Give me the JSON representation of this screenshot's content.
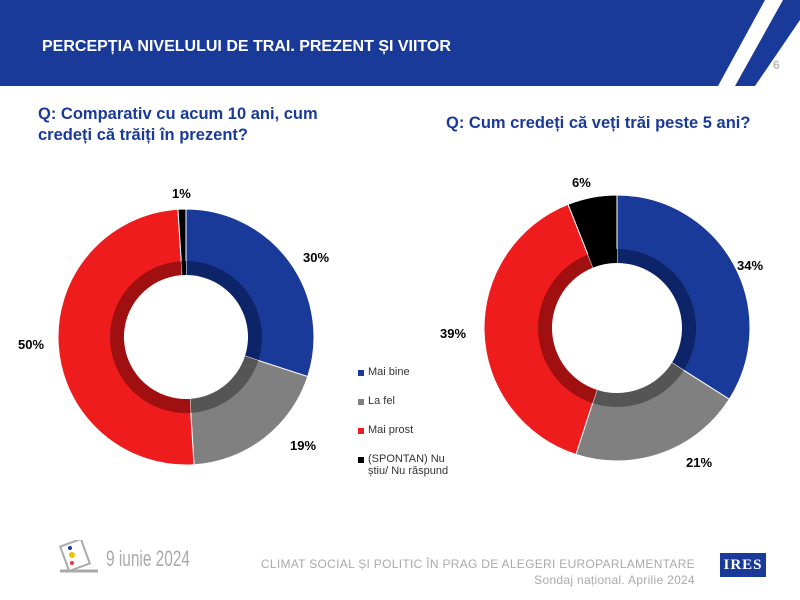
{
  "header": {
    "title": "PERCEPȚIA NIVELULUI DE TRAI. PREZENT ȘI VIITOR",
    "page_number": "6",
    "color": "#1a3a9a"
  },
  "legend": [
    "Mai bine",
    "La fel",
    "Mai prost",
    "(SPONTAN) Nu știu/ Nu răspund"
  ],
  "colors": [
    "#1a3a9a",
    "#808080",
    "#ee1c1c",
    "#000000"
  ],
  "chart_data": [
    {
      "type": "pie",
      "variant": "donut",
      "title": "Q: Comparativ cu acum 10 ani, cum credeți că trăiți în prezent?",
      "categories": [
        "Mai bine",
        "La fel",
        "Mai prost",
        "(SPONTAN) Nu știu/ Nu răspund"
      ],
      "values": [
        30,
        19,
        50,
        1
      ],
      "labels": [
        "30%",
        "19%",
        "50%",
        "1%"
      ]
    },
    {
      "type": "pie",
      "variant": "donut",
      "title": "Q: Cum credeți că veți trăi peste 5 ani?",
      "categories": [
        "Mai bine",
        "La fel",
        "Mai prost",
        "(SPONTAN) Nu știu/ Nu răspund"
      ],
      "values": [
        34,
        21,
        39,
        6
      ],
      "labels": [
        "34%",
        "21%",
        "39%",
        "6%"
      ]
    }
  ],
  "footer": {
    "date": "9 iunie 2024",
    "line1": "CLIMAT SOCIAL ȘI POLITIC ÎN PRAG DE ALEGERI EUROPARLAMENTARE",
    "line2": "Sondaj național. Aprilie 2024",
    "logo": "IRES"
  }
}
